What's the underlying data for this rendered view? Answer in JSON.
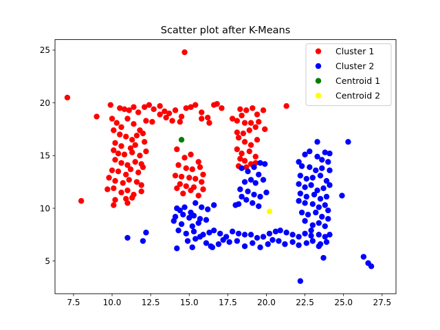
{
  "chart_data": {
    "type": "scatter",
    "title": "Scatter plot after K-Means",
    "xlabel": "",
    "ylabel": "",
    "xlim": [
      6.3,
      28.4
    ],
    "ylim": [
      1.9,
      26.0
    ],
    "xticks": [
      7.5,
      10.0,
      12.5,
      15.0,
      17.5,
      20.0,
      22.5,
      25.0,
      27.5
    ],
    "xtick_labels": [
      "7.5",
      "10.0",
      "12.5",
      "15.0",
      "17.5",
      "20.0",
      "22.5",
      "25.0",
      "27.5"
    ],
    "yticks": [
      5,
      10,
      15,
      20,
      25
    ],
    "ytick_labels": [
      "5",
      "10",
      "15",
      "20",
      "25"
    ],
    "grid": false,
    "legend_position": "top-right",
    "colors": {
      "cluster1": "#ff0000",
      "cluster2": "#0000ff",
      "centroid1": "#008000",
      "centroid2": "#ffff00"
    },
    "series": [
      {
        "name": "Cluster 1",
        "color": "#ff0000",
        "points": [
          [
            14.7,
            24.8
          ],
          [
            7.1,
            20.5
          ],
          [
            8.0,
            10.7
          ],
          [
            9.0,
            18.7
          ],
          [
            21.3,
            19.7
          ],
          [
            9.9,
            19.8
          ],
          [
            10.5,
            19.5
          ],
          [
            10.8,
            19.4
          ],
          [
            11.1,
            19.3
          ],
          [
            11.4,
            19.6
          ],
          [
            11.7,
            19.1
          ],
          [
            12.1,
            19.6
          ],
          [
            12.4,
            19.8
          ],
          [
            12.7,
            19.4
          ],
          [
            13.1,
            19.7
          ],
          [
            13.4,
            19.2
          ],
          [
            13.7,
            19.0
          ],
          [
            14.1,
            19.3
          ],
          [
            14.5,
            18.7
          ],
          [
            14.8,
            19.5
          ],
          [
            15.1,
            19.6
          ],
          [
            15.4,
            19.8
          ],
          [
            15.8,
            19.1
          ],
          [
            16.2,
            18.6
          ],
          [
            16.6,
            19.8
          ],
          [
            16.8,
            19.9
          ],
          [
            17.1,
            19.5
          ],
          [
            10.0,
            18.5
          ],
          [
            10.3,
            18.1
          ],
          [
            10.6,
            17.7
          ],
          [
            11.0,
            18.5
          ],
          [
            11.4,
            18.0
          ],
          [
            11.8,
            17.4
          ],
          [
            12.2,
            18.3
          ],
          [
            12.6,
            18.2
          ],
          [
            13.1,
            18.9
          ],
          [
            13.5,
            18.6
          ],
          [
            13.9,
            18.3
          ],
          [
            14.4,
            18.2
          ],
          [
            15.8,
            18.5
          ],
          [
            16.3,
            18.1
          ],
          [
            10.1,
            17.4
          ],
          [
            10.5,
            17.0
          ],
          [
            10.9,
            16.8
          ],
          [
            11.3,
            16.5
          ],
          [
            11.6,
            16.9
          ],
          [
            12.0,
            17.1
          ],
          [
            10.2,
            16.2
          ],
          [
            10.6,
            15.9
          ],
          [
            11.2,
            15.7
          ],
          [
            11.5,
            16.0
          ],
          [
            12.1,
            16.3
          ],
          [
            10.1,
            15.5
          ],
          [
            10.4,
            15.2
          ],
          [
            10.8,
            15.1
          ],
          [
            11.3,
            15.3
          ],
          [
            11.8,
            15.0
          ],
          [
            12.2,
            15.4
          ],
          [
            10.2,
            14.6
          ],
          [
            10.6,
            14.3
          ],
          [
            11.0,
            14.1
          ],
          [
            11.5,
            14.4
          ],
          [
            11.9,
            14.2
          ],
          [
            10.0,
            13.6
          ],
          [
            10.4,
            13.5
          ],
          [
            10.9,
            13.2
          ],
          [
            11.2,
            13.7
          ],
          [
            11.7,
            13.4
          ],
          [
            12.0,
            13.9
          ],
          [
            9.8,
            12.9
          ],
          [
            10.2,
            12.6
          ],
          [
            10.7,
            12.4
          ],
          [
            11.1,
            12.7
          ],
          [
            11.6,
            12.5
          ],
          [
            11.9,
            12.2
          ],
          [
            9.7,
            11.8
          ],
          [
            10.1,
            11.9
          ],
          [
            10.6,
            11.5
          ],
          [
            11.0,
            11.7
          ],
          [
            11.4,
            11.3
          ],
          [
            11.9,
            11.6
          ],
          [
            10.2,
            10.8
          ],
          [
            10.9,
            10.9
          ],
          [
            11.3,
            11.0
          ],
          [
            10.1,
            10.3
          ],
          [
            11.0,
            10.5
          ],
          [
            14.2,
            15.6
          ],
          [
            14.7,
            14.8
          ],
          [
            15.1,
            15.1
          ],
          [
            15.6,
            14.4
          ],
          [
            14.3,
            14.1
          ],
          [
            14.8,
            13.8
          ],
          [
            15.2,
            13.7
          ],
          [
            15.7,
            13.9
          ],
          [
            14.1,
            13.1
          ],
          [
            14.5,
            13.0
          ],
          [
            15.0,
            12.9
          ],
          [
            15.4,
            12.8
          ],
          [
            15.9,
            13.2
          ],
          [
            14.4,
            12.3
          ],
          [
            14.8,
            12.1
          ],
          [
            15.3,
            12.0
          ],
          [
            15.8,
            12.5
          ],
          [
            14.6,
            11.4
          ],
          [
            15.1,
            11.7
          ],
          [
            15.6,
            11.2
          ],
          [
            15.9,
            11.8
          ],
          [
            14.2,
            11.9
          ],
          [
            17.8,
            18.5
          ],
          [
            18.1,
            18.3
          ],
          [
            18.4,
            18.8
          ],
          [
            18.7,
            19.3
          ],
          [
            19.1,
            19.5
          ],
          [
            19.4,
            18.9
          ],
          [
            19.8,
            19.3
          ],
          [
            18.3,
            19.4
          ],
          [
            18.6,
            18.1
          ],
          [
            19.0,
            18.1
          ],
          [
            19.5,
            18.2
          ],
          [
            19.9,
            17.5
          ],
          [
            18.1,
            17.2
          ],
          [
            18.5,
            17.1
          ],
          [
            18.9,
            17.4
          ],
          [
            19.3,
            17.7
          ],
          [
            18.2,
            16.7
          ],
          [
            18.6,
            16.3
          ],
          [
            19.0,
            16.0
          ],
          [
            19.4,
            16.5
          ],
          [
            18.1,
            15.6
          ],
          [
            18.4,
            15.2
          ],
          [
            18.9,
            15.4
          ],
          [
            19.3,
            14.9
          ],
          [
            18.3,
            14.7
          ],
          [
            18.6,
            14.5
          ],
          [
            19.0,
            14.2
          ],
          [
            18.2,
            14.0
          ],
          [
            18.7,
            13.9
          ],
          [
            19.3,
            14.3
          ]
        ]
      },
      {
        "name": "Cluster 2",
        "color": "#0000ff",
        "points": [
          [
            22.2,
            3.1
          ],
          [
            26.3,
            5.4
          ],
          [
            26.6,
            4.8
          ],
          [
            26.8,
            4.5
          ],
          [
            25.3,
            16.3
          ],
          [
            24.9,
            11.2
          ],
          [
            11.0,
            7.2
          ],
          [
            12.0,
            6.9
          ],
          [
            12.2,
            7.7
          ],
          [
            23.7,
            5.3
          ],
          [
            23.4,
            6.4
          ],
          [
            14.2,
            10.0
          ],
          [
            14.4,
            9.8
          ],
          [
            14.7,
            10.1
          ],
          [
            15.1,
            9.6
          ],
          [
            15.4,
            10.5
          ],
          [
            15.8,
            10.1
          ],
          [
            16.2,
            9.9
          ],
          [
            16.6,
            10.3
          ],
          [
            14.1,
            9.2
          ],
          [
            14.6,
            9.4
          ],
          [
            15.0,
            9.1
          ],
          [
            15.3,
            9.3
          ],
          [
            15.7,
            9.0
          ],
          [
            16.1,
            8.9
          ],
          [
            14.0,
            8.8
          ],
          [
            14.5,
            8.5
          ],
          [
            15.2,
            8.3
          ],
          [
            15.6,
            8.6
          ],
          [
            14.3,
            7.9
          ],
          [
            14.8,
            7.6
          ],
          [
            15.3,
            7.8
          ],
          [
            15.9,
            7.5
          ],
          [
            16.3,
            7.7
          ],
          [
            16.6,
            7.9
          ],
          [
            17.0,
            7.6
          ],
          [
            17.4,
            7.3
          ],
          [
            17.8,
            7.8
          ],
          [
            18.2,
            7.6
          ],
          [
            18.6,
            7.5
          ],
          [
            19.0,
            7.5
          ],
          [
            19.4,
            7.2
          ],
          [
            19.8,
            7.3
          ],
          [
            20.2,
            7.6
          ],
          [
            20.6,
            7.8
          ],
          [
            20.9,
            7.9
          ],
          [
            21.3,
            7.7
          ],
          [
            21.7,
            7.5
          ],
          [
            22.1,
            7.3
          ],
          [
            22.5,
            7.6
          ],
          [
            22.9,
            7.4
          ],
          [
            23.4,
            7.5
          ],
          [
            23.8,
            7.3
          ],
          [
            14.2,
            6.2
          ],
          [
            14.9,
            6.9
          ],
          [
            15.4,
            7.1
          ],
          [
            15.7,
            7.3
          ],
          [
            16.1,
            6.7
          ],
          [
            16.4,
            6.4
          ],
          [
            16.9,
            6.6
          ],
          [
            17.2,
            7.0
          ],
          [
            17.6,
            6.8
          ],
          [
            18.1,
            6.9
          ],
          [
            18.6,
            6.4
          ],
          [
            19.1,
            6.7
          ],
          [
            19.6,
            6.3
          ],
          [
            20.1,
            6.6
          ],
          [
            20.4,
            7.0
          ],
          [
            20.8,
            6.9
          ],
          [
            21.2,
            6.6
          ],
          [
            21.7,
            6.8
          ],
          [
            22.1,
            6.5
          ],
          [
            22.6,
            6.7
          ],
          [
            23.0,
            6.9
          ],
          [
            23.5,
            6.6
          ],
          [
            23.9,
            6.8
          ],
          [
            16.5,
            6.3
          ],
          [
            15.2,
            6.3
          ],
          [
            18.4,
            13.8
          ],
          [
            18.8,
            13.5
          ],
          [
            19.2,
            13.9
          ],
          [
            19.6,
            14.3
          ],
          [
            19.9,
            14.2
          ],
          [
            19.5,
            13.2
          ],
          [
            19.8,
            12.7
          ],
          [
            19.3,
            12.4
          ],
          [
            19.0,
            12.7
          ],
          [
            18.6,
            12.5
          ],
          [
            18.3,
            11.8
          ],
          [
            18.8,
            11.6
          ],
          [
            19.2,
            11.3
          ],
          [
            19.6,
            11.1
          ],
          [
            20.0,
            11.5
          ],
          [
            18.4,
            11.1
          ],
          [
            18.2,
            10.4
          ],
          [
            18.7,
            10.8
          ],
          [
            19.1,
            10.5
          ],
          [
            19.5,
            10.2
          ],
          [
            18.0,
            10.3
          ],
          [
            22.1,
            14.4
          ],
          [
            22.5,
            15.1
          ],
          [
            22.8,
            15.4
          ],
          [
            23.3,
            14.9
          ],
          [
            23.6,
            14.6
          ],
          [
            24.0,
            14.4
          ],
          [
            22.3,
            14.0
          ],
          [
            22.8,
            13.9
          ],
          [
            23.2,
            13.6
          ],
          [
            23.6,
            13.8
          ],
          [
            24.1,
            13.6
          ],
          [
            22.2,
            13.1
          ],
          [
            22.6,
            12.8
          ],
          [
            23.0,
            12.9
          ],
          [
            23.5,
            13.1
          ],
          [
            23.9,
            12.6
          ],
          [
            22.1,
            12.3
          ],
          [
            22.5,
            12.0
          ],
          [
            22.9,
            12.2
          ],
          [
            23.3,
            11.7
          ],
          [
            23.7,
            11.9
          ],
          [
            24.1,
            12.2
          ],
          [
            22.2,
            11.4
          ],
          [
            22.6,
            11.1
          ],
          [
            23.1,
            11.3
          ],
          [
            23.5,
            10.9
          ],
          [
            23.9,
            11.1
          ],
          [
            22.1,
            10.7
          ],
          [
            22.5,
            10.5
          ],
          [
            23.0,
            10.4
          ],
          [
            23.4,
            10.1
          ],
          [
            23.8,
            10.3
          ],
          [
            24.0,
            9.8
          ],
          [
            22.3,
            9.6
          ],
          [
            22.7,
            9.4
          ],
          [
            23.2,
            9.6
          ],
          [
            23.6,
            9.2
          ],
          [
            24.0,
            9.0
          ],
          [
            22.5,
            8.8
          ],
          [
            23.0,
            8.4
          ],
          [
            23.4,
            8.6
          ],
          [
            23.8,
            8.3
          ],
          [
            22.9,
            7.9
          ],
          [
            24.1,
            7.5
          ],
          [
            23.3,
            16.3
          ],
          [
            23.8,
            15.3
          ],
          [
            24.1,
            15.2
          ]
        ]
      },
      {
        "name": "Centroid 1",
        "color": "#008000",
        "points": [
          [
            14.5,
            16.5
          ]
        ]
      },
      {
        "name": "Centroid 2",
        "color": "#ffff00",
        "points": [
          [
            20.2,
            9.7
          ]
        ]
      }
    ]
  }
}
